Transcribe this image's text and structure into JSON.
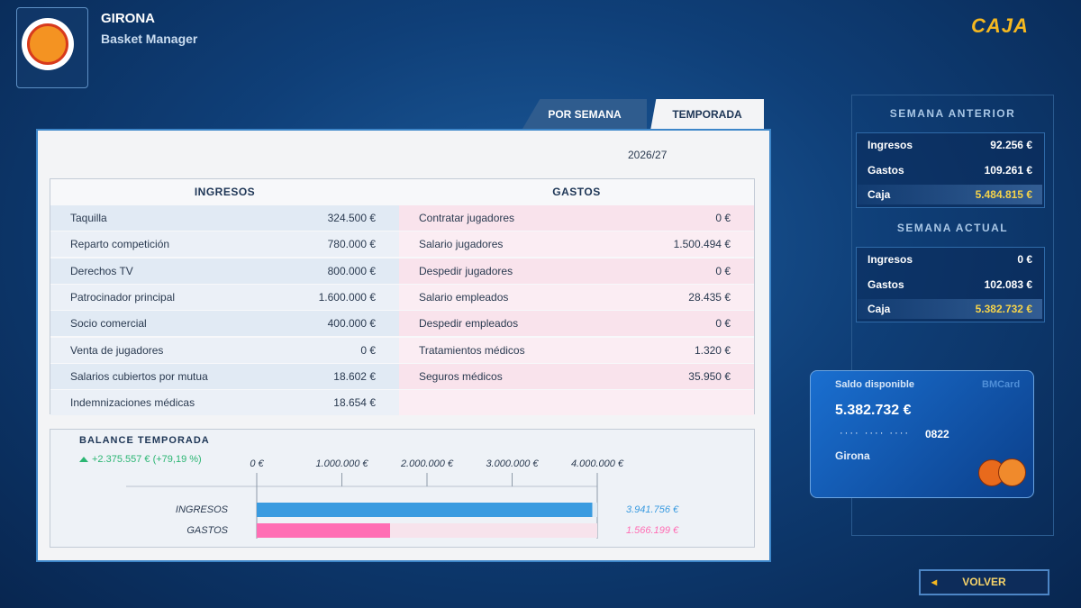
{
  "header": {
    "team": "GIRONA",
    "subtitle": "Basket Manager",
    "section": "CAJA"
  },
  "tabs": [
    "POR SEMANA",
    "TEMPORADA"
  ],
  "season": "2026/27",
  "ingresos": {
    "title": "INGRESOS",
    "rows": [
      {
        "label": "Taquilla",
        "value": "324.500 €"
      },
      {
        "label": "Reparto competición",
        "value": "780.000 €"
      },
      {
        "label": "Derechos TV",
        "value": "800.000 €"
      },
      {
        "label": "Patrocinador principal",
        "value": "1.600.000 €"
      },
      {
        "label": "Socio comercial",
        "value": "400.000 €"
      },
      {
        "label": "Venta de jugadores",
        "value": "0 €"
      },
      {
        "label": "Salarios cubiertos por mutua",
        "value": "18.602 €"
      },
      {
        "label": "Indemnizaciones médicas",
        "value": "18.654 €"
      }
    ]
  },
  "gastos": {
    "title": "GASTOS",
    "rows": [
      {
        "label": "Contratar jugadores",
        "value": "0 €"
      },
      {
        "label": "Salario jugadores",
        "value": "1.500.494 €"
      },
      {
        "label": "Despedir jugadores",
        "value": "0 €"
      },
      {
        "label": "Salario empleados",
        "value": "28.435 €"
      },
      {
        "label": "Despedir empleados",
        "value": "0 €"
      },
      {
        "label": "Tratamientos médicos",
        "value": "1.320 €"
      },
      {
        "label": "Seguros médicos",
        "value": "35.950 €"
      }
    ]
  },
  "chart_data": {
    "type": "hbar",
    "title": "BALANCE TEMPORADA",
    "subtitle": "+2.375.557 € (+79,19 %)",
    "categories": [
      "INGRESOS",
      "GASTOS"
    ],
    "values": [
      3941756,
      1566199
    ],
    "value_labels": [
      "3.941.756 €",
      "1.566.199 €"
    ],
    "colors": [
      "#3a9be0",
      "#ff6eb4"
    ],
    "xlim": [
      0,
      4000000
    ],
    "xticks": [
      {
        "value": 0,
        "label": "0 €"
      },
      {
        "value": 1000000,
        "label": "1.000.000 €"
      },
      {
        "value": 2000000,
        "label": "2.000.000 €"
      },
      {
        "value": 3000000,
        "label": "3.000.000 €"
      },
      {
        "value": 4000000,
        "label": "4.000.000 €"
      }
    ]
  },
  "semana_anterior": {
    "title": "SEMANA ANTERIOR",
    "rows": [
      {
        "label": "Ingresos",
        "value": "92.256 €"
      },
      {
        "label": "Gastos",
        "value": "109.261 €"
      },
      {
        "label": "Caja",
        "value": "5.484.815 €"
      }
    ]
  },
  "semana_actual": {
    "title": "SEMANA ACTUAL",
    "rows": [
      {
        "label": "Ingresos",
        "value": "0 €"
      },
      {
        "label": "Gastos",
        "value": "102.083 €"
      },
      {
        "label": "Caja",
        "value": "5.382.732 €"
      }
    ]
  },
  "card": {
    "label": "Saldo disponible",
    "brand": "BMCard",
    "balance": "5.382.732 €",
    "dots": "···· ···· ····",
    "number": "0822",
    "owner": "Girona"
  },
  "button": "VOLVER"
}
